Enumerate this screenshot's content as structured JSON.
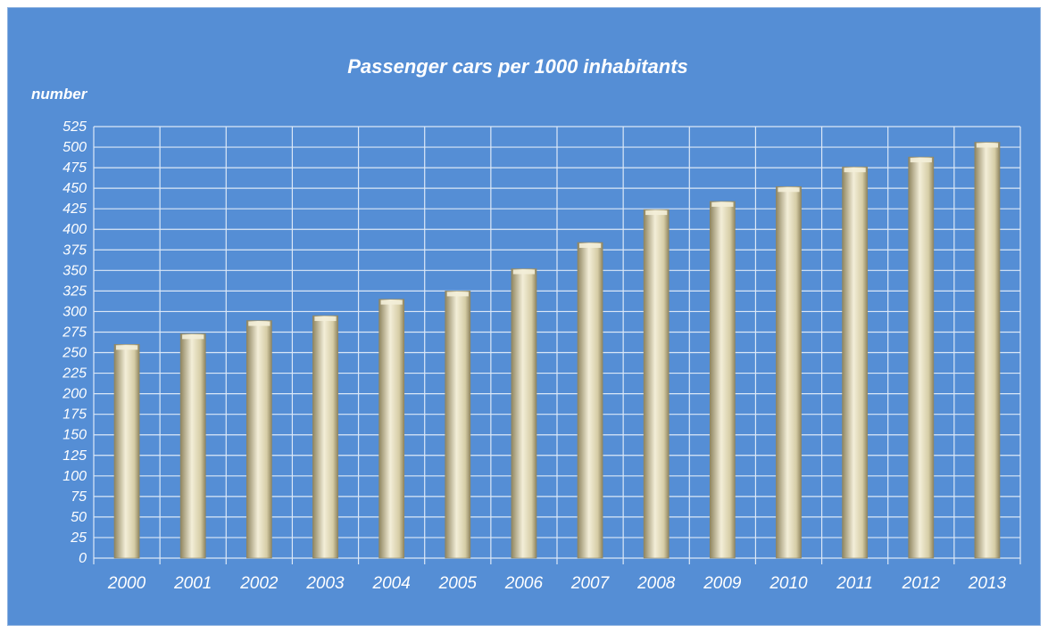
{
  "colors": {
    "background": "#558ed5",
    "grid": "#dce8f7",
    "bar_light": "#f3eed8",
    "bar_mid": "#d6cda6",
    "bar_dark": "#8f8560",
    "text": "#ffffff"
  },
  "chart_data": {
    "type": "bar",
    "title": "Passenger cars per 1000 inhabitants",
    "ylabel": "number",
    "xlabel": "",
    "ylim": [
      0,
      525
    ],
    "ytick_step": 25,
    "grid": true,
    "legend": "none",
    "categories": [
      "2000",
      "2001",
      "2002",
      "2003",
      "2004",
      "2005",
      "2006",
      "2007",
      "2008",
      "2009",
      "2010",
      "2011",
      "2012",
      "2013"
    ],
    "values": [
      260,
      273,
      289,
      295,
      315,
      325,
      352,
      384,
      424,
      434,
      452,
      476,
      488,
      506
    ]
  }
}
